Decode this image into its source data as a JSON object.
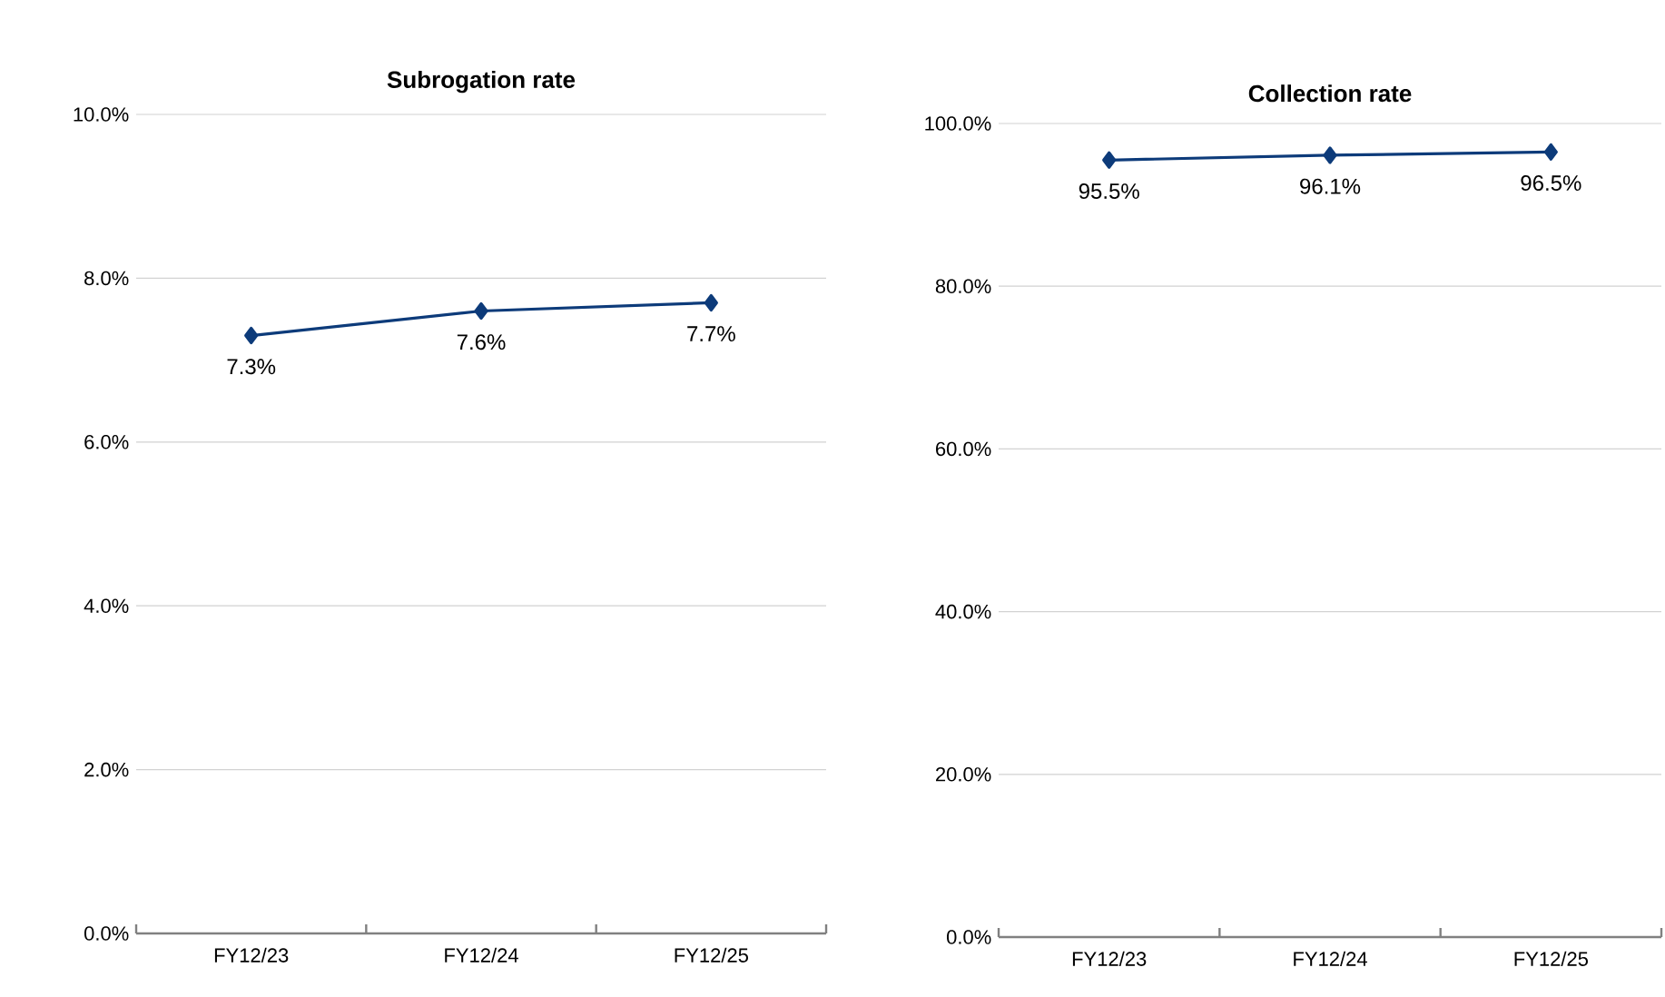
{
  "chart_data": [
    {
      "type": "line",
      "title": "Subrogation rate",
      "categories": [
        "FY12/23",
        "FY12/24",
        "FY12/25"
      ],
      "series": [
        {
          "color": "#0d3b7a",
          "values": [
            7.3,
            7.6,
            7.7
          ],
          "value_labels": [
            "7.3%",
            "7.6%",
            "7.7%"
          ]
        }
      ],
      "ylim": [
        0,
        10
      ],
      "yticks": [
        {
          "value": 0,
          "label": "0.0%"
        },
        {
          "value": 2,
          "label": "2.0%"
        },
        {
          "value": 4,
          "label": "4.0%"
        },
        {
          "value": 6,
          "label": "6.0%"
        },
        {
          "value": 8,
          "label": "8.0%"
        },
        {
          "value": 10,
          "label": "10.0%"
        }
      ],
      "grid": "y",
      "marker": "diamond"
    },
    {
      "type": "line",
      "title": "Collection rate",
      "categories": [
        "FY12/23",
        "FY12/24",
        "FY12/25"
      ],
      "series": [
        {
          "color": "#0d3b7a",
          "values": [
            95.5,
            96.1,
            96.5
          ],
          "value_labels": [
            "95.5%",
            "96.1%",
            "96.5%"
          ]
        }
      ],
      "ylim": [
        0,
        100
      ],
      "yticks": [
        {
          "value": 0,
          "label": "0.0%"
        },
        {
          "value": 20,
          "label": "20.0%"
        },
        {
          "value": 40,
          "label": "40.0%"
        },
        {
          "value": 60,
          "label": "60.0%"
        },
        {
          "value": 80,
          "label": "80.0%"
        },
        {
          "value": 100,
          "label": "100.0%"
        }
      ],
      "grid": "y",
      "marker": "diamond"
    }
  ]
}
